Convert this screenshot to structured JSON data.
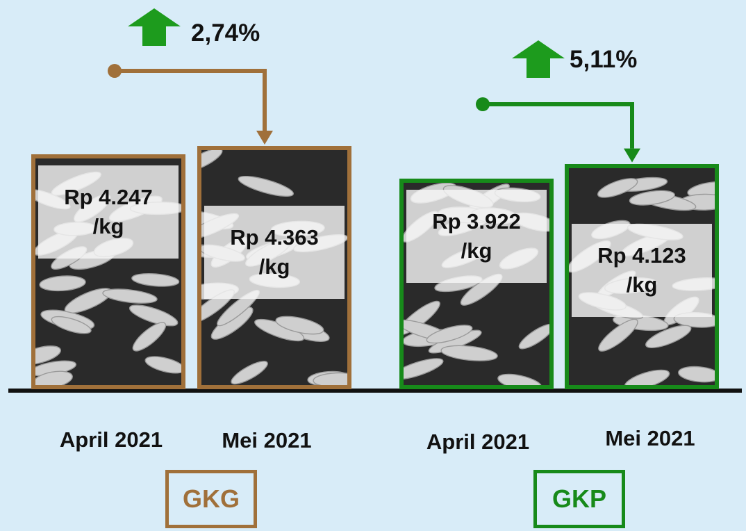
{
  "chart_data": {
    "type": "bar",
    "title": "",
    "unit": "Rp/kg",
    "groups": [
      {
        "name": "GKG",
        "color": "#a0703a",
        "change_label": "2,74%",
        "bars": [
          {
            "month": "April 2021",
            "value": 4247,
            "price_line1": "Rp 4.247",
            "price_line2": "/kg"
          },
          {
            "month": "Mei 2021",
            "value": 4363,
            "price_line1": "Rp 4.363",
            "price_line2": "/kg"
          }
        ]
      },
      {
        "name": "GKP",
        "color": "#178a1a",
        "change_label": "5,11%",
        "bars": [
          {
            "month": "April 2021",
            "value": 3922,
            "price_line1": "Rp 3.922",
            "price_line2": "/kg"
          },
          {
            "month": "Mei 2021",
            "value": 4123,
            "price_line1": "Rp 4.123",
            "price_line2": "/kg"
          }
        ]
      }
    ]
  },
  "icons": {
    "change_indicator": "up-arrow-icon",
    "change_color": "#1d9b1d"
  }
}
